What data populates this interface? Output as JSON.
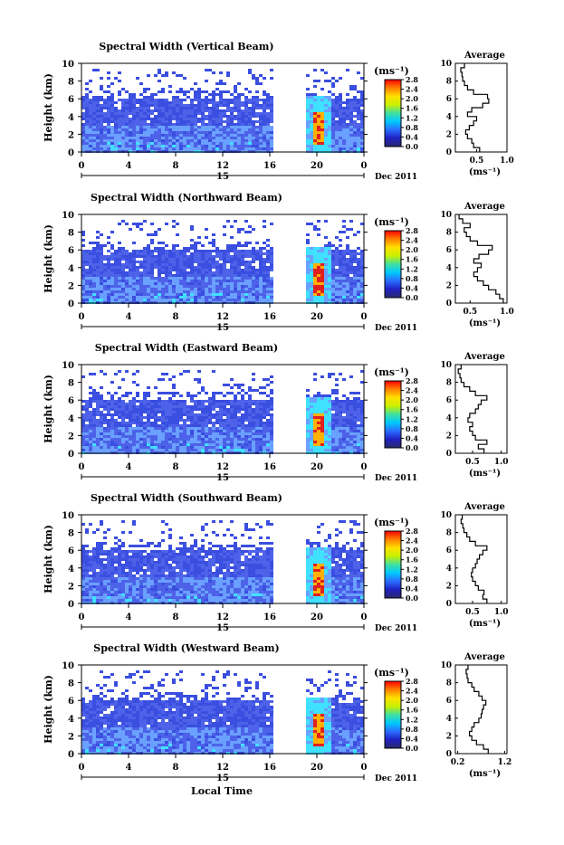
{
  "figure": {
    "xlabel_bottom": "Local Time",
    "date_label": "Dec 2011",
    "colorbar_unit_label": "(ms⁻¹)",
    "colorbar_ticks": [
      "2.8",
      "2.4",
      "2.0",
      "1.6",
      "1.2",
      "0.8",
      "0.4",
      "0.0"
    ],
    "colors": {
      "colorbar_stops": [
        "#2a2a6e",
        "#2020c0",
        "#2a6cff",
        "#00c8ff",
        "#40e0a0",
        "#c8f000",
        "#ffe000",
        "#ff8000",
        "#ff0000"
      ],
      "main_blue": "#3a4ee0",
      "light_blue": "#6aa0ff",
      "cyan": "#40e0ff",
      "red": "#e02020"
    }
  },
  "chart_data": [
    {
      "type": "heatmap",
      "title": "Spectral Width (Vertical Beam)",
      "ylabel": "Height (km)",
      "yticks": [
        "0",
        "2",
        "4",
        "6",
        "8",
        "10"
      ],
      "xticks": [
        "0",
        "4",
        "8",
        "12",
        "16",
        "20",
        "0"
      ],
      "day_label": "15",
      "x_range_hours": [
        0,
        24
      ],
      "y_range_km": [
        0,
        10
      ],
      "data_gap_hours": [
        16.2,
        18.8
      ],
      "clim": [
        0,
        3.0
      ],
      "profile": {
        "title": "Average",
        "xlabel": "(ms⁻¹)",
        "xticks": [
          "0.5",
          "1.0"
        ],
        "xtick_values": [
          0.5,
          1.0
        ],
        "xlim": [
          0.15,
          1.0
        ],
        "heights_km": [
          0,
          0.5,
          1,
          1.5,
          2,
          2.5,
          3,
          3.5,
          4,
          4.5,
          5,
          5.5,
          6,
          6.5,
          7,
          7.5,
          8,
          8.5,
          9,
          9.5
        ],
        "values": [
          0.55,
          0.45,
          0.42,
          0.35,
          0.32,
          0.38,
          0.45,
          0.5,
          0.35,
          0.42,
          0.6,
          0.7,
          0.68,
          0.45,
          0.35,
          0.3,
          0.27,
          0.26,
          0.24,
          0.3
        ]
      }
    },
    {
      "type": "heatmap",
      "title": "Spectral Width (Northward Beam)",
      "ylabel": "Height (km)",
      "yticks": [
        "0",
        "2",
        "4",
        "6",
        "8",
        "10"
      ],
      "xticks": [
        "0",
        "4",
        "8",
        "12",
        "16",
        "20",
        "0"
      ],
      "day_label": "15",
      "x_range_hours": [
        0,
        24
      ],
      "y_range_km": [
        0,
        10
      ],
      "data_gap_hours": [
        16.2,
        18.8
      ],
      "clim": [
        0,
        3.0
      ],
      "profile": {
        "title": "Average",
        "xlabel": "(ms⁻¹)",
        "xticks": [
          "0.5",
          "1.0"
        ],
        "xtick_values": [
          0.5,
          1.0
        ],
        "xlim": [
          0.3,
          1.0
        ],
        "heights_km": [
          0,
          0.5,
          1,
          1.5,
          2,
          2.5,
          3,
          3.5,
          4,
          4.5,
          5,
          5.5,
          6,
          6.5,
          7,
          7.5,
          8,
          8.5,
          9,
          9.5
        ],
        "values": [
          0.95,
          0.9,
          0.85,
          0.75,
          0.68,
          0.6,
          0.55,
          0.6,
          0.65,
          0.55,
          0.62,
          0.75,
          0.8,
          0.6,
          0.5,
          0.45,
          0.42,
          0.5,
          0.4,
          0.35
        ]
      }
    },
    {
      "type": "heatmap",
      "title": "Spectral Width (Eastward Beam)",
      "ylabel": "Height (km)",
      "yticks": [
        "0",
        "2",
        "4",
        "6",
        "8",
        "10"
      ],
      "xticks": [
        "0",
        "4",
        "8",
        "12",
        "16",
        "20",
        "0"
      ],
      "day_label": "15",
      "x_range_hours": [
        0,
        24
      ],
      "y_range_km": [
        0,
        10
      ],
      "data_gap_hours": [
        16.2,
        18.8
      ],
      "clim": [
        0,
        3.0
      ],
      "profile": {
        "title": "Average",
        "xlabel": "(ms⁻¹)",
        "xticks": [
          "0.5",
          "1.0"
        ],
        "xtick_values": [
          0.5,
          1.0
        ],
        "xlim": [
          0.2,
          1.1
        ],
        "heights_km": [
          0,
          0.5,
          1,
          1.5,
          2,
          2.5,
          3,
          3.5,
          4,
          4.5,
          5,
          5.5,
          6,
          6.5,
          7,
          7.5,
          8,
          8.5,
          9,
          9.5
        ],
        "values": [
          0.7,
          0.6,
          0.75,
          0.55,
          0.5,
          0.45,
          0.5,
          0.42,
          0.45,
          0.55,
          0.6,
          0.65,
          0.75,
          0.55,
          0.45,
          0.35,
          0.3,
          0.28,
          0.25,
          0.3
        ]
      }
    },
    {
      "type": "heatmap",
      "title": "Spectral Width (Southward Beam)",
      "ylabel": "Height (km)",
      "yticks": [
        "0",
        "2",
        "4",
        "6",
        "8",
        "10"
      ],
      "xticks": [
        "0",
        "4",
        "8",
        "12",
        "16",
        "20",
        "0"
      ],
      "day_label": "15",
      "x_range_hours": [
        0,
        24
      ],
      "y_range_km": [
        0,
        10
      ],
      "data_gap_hours": [
        16.2,
        18.8
      ],
      "clim": [
        0,
        3.0
      ],
      "profile": {
        "title": "Average",
        "xlabel": "(ms⁻¹)",
        "xticks": [
          "0.5",
          "1.0"
        ],
        "xtick_values": [
          0.5,
          1.0
        ],
        "xlim": [
          0.2,
          1.1
        ],
        "heights_km": [
          0,
          0.5,
          1,
          1.5,
          2,
          2.5,
          3,
          3.5,
          4,
          4.5,
          5,
          5.5,
          6,
          6.5,
          7,
          7.5,
          8,
          8.5,
          9,
          9.5
        ],
        "values": [
          0.75,
          0.68,
          0.7,
          0.6,
          0.55,
          0.5,
          0.48,
          0.5,
          0.55,
          0.58,
          0.62,
          0.68,
          0.75,
          0.55,
          0.45,
          0.4,
          0.35,
          0.33,
          0.3,
          0.32
        ]
      }
    },
    {
      "type": "heatmap",
      "title": "Spectral Width (Westward Beam)",
      "ylabel": "Height (km)",
      "yticks": [
        "0",
        "2",
        "4",
        "6",
        "8",
        "10"
      ],
      "xticks": [
        "0",
        "4",
        "8",
        "12",
        "16",
        "20",
        "0"
      ],
      "day_label": "15",
      "x_range_hours": [
        0,
        24
      ],
      "y_range_km": [
        0,
        10
      ],
      "data_gap_hours": [
        16.2,
        18.8
      ],
      "clim": [
        0,
        3.0
      ],
      "profile": {
        "title": "Average",
        "xlabel": "(ms⁻¹)",
        "xticks": [
          "0.2",
          "1.2"
        ],
        "xtick_values": [
          0.2,
          1.2
        ],
        "xlim": [
          0.15,
          1.25
        ],
        "heights_km": [
          0,
          0.5,
          1,
          1.5,
          2,
          2.5,
          3,
          3.5,
          4,
          4.5,
          5,
          5.5,
          6,
          6.5,
          7,
          7.5,
          8,
          8.5,
          9,
          9.5
        ],
        "values": [
          0.85,
          0.75,
          0.6,
          0.5,
          0.45,
          0.5,
          0.55,
          0.65,
          0.7,
          0.72,
          0.75,
          0.8,
          0.72,
          0.65,
          0.55,
          0.5,
          0.42,
          0.4,
          0.38,
          0.42
        ]
      }
    }
  ]
}
